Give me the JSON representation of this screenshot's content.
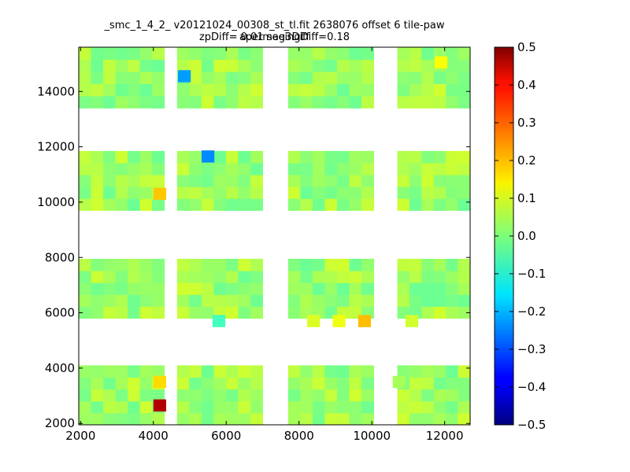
{
  "chart_data": {
    "type": "heatmap",
    "title_line1": "_smc_1_4_2_ v20121024_00308_st_tl.fit 2638076 offset 6 tile-paw apermag3Diff",
    "title_line2": "zpDiff= 0.01 seeingDiff=0.18",
    "xlim": [
      1950,
      12700
    ],
    "ylim": [
      1950,
      15600
    ],
    "xticks": [
      2000,
      4000,
      6000,
      8000,
      10000,
      12000
    ],
    "yticks": [
      2000,
      4000,
      6000,
      8000,
      10000,
      12000,
      14000
    ],
    "colorbar": {
      "colormap": "jet",
      "range": [
        -0.5,
        0.5
      ],
      "ticks": [
        0.5,
        0.4,
        0.3,
        0.2,
        0.1,
        0.0,
        -0.1,
        -0.2,
        -0.3,
        -0.4,
        -0.5
      ],
      "tick_labels": [
        "0.5",
        "0.4",
        "0.3",
        "0.2",
        "0.1",
        "0.0",
        "−0.1",
        "−0.2",
        "−0.3",
        "−0.4",
        "−0.5"
      ]
    },
    "cell_size": [
      350,
      440
    ],
    "base_value": 0.03,
    "tile_columns": [
      {
        "x_range": [
          1950,
          4300
        ],
        "cells": 7
      },
      {
        "x_range": [
          4650,
          7000
        ],
        "cells": 7
      },
      {
        "x_range": [
          7700,
          10050
        ],
        "cells": 7
      },
      {
        "x_range": [
          10700,
          12700
        ],
        "cells": 6
      }
    ],
    "tile_rows": [
      {
        "y_range": [
          1950,
          4100
        ],
        "cells": 5
      },
      {
        "y_range": [
          5800,
          7950
        ],
        "cells": 5
      },
      {
        "y_range": [
          9700,
          11850
        ],
        "cells": 5
      },
      {
        "y_range": [
          13400,
          15600
        ],
        "cells": 5
      }
    ],
    "highlights": [
      {
        "x": 4175,
        "y": 2650,
        "value": 0.45
      },
      {
        "x": 4175,
        "y": 3500,
        "value": 0.16
      },
      {
        "x": 4175,
        "y": 10300,
        "value": 0.18
      },
      {
        "x": 9800,
        "y": 5700,
        "value": 0.19
      },
      {
        "x": 9100,
        "y": 5700,
        "value": 0.11
      },
      {
        "x": 8400,
        "y": 5700,
        "value": 0.09
      },
      {
        "x": 11100,
        "y": 5700,
        "value": 0.08
      },
      {
        "x": 5800,
        "y": 5700,
        "value": -0.06
      },
      {
        "x": 4850,
        "y": 14550,
        "value": -0.22
      },
      {
        "x": 5500,
        "y": 11650,
        "value": -0.24
      },
      {
        "x": 10750,
        "y": 3500,
        "value": 0.04
      },
      {
        "x": 11900,
        "y": 15050,
        "value": 0.12
      }
    ]
  }
}
